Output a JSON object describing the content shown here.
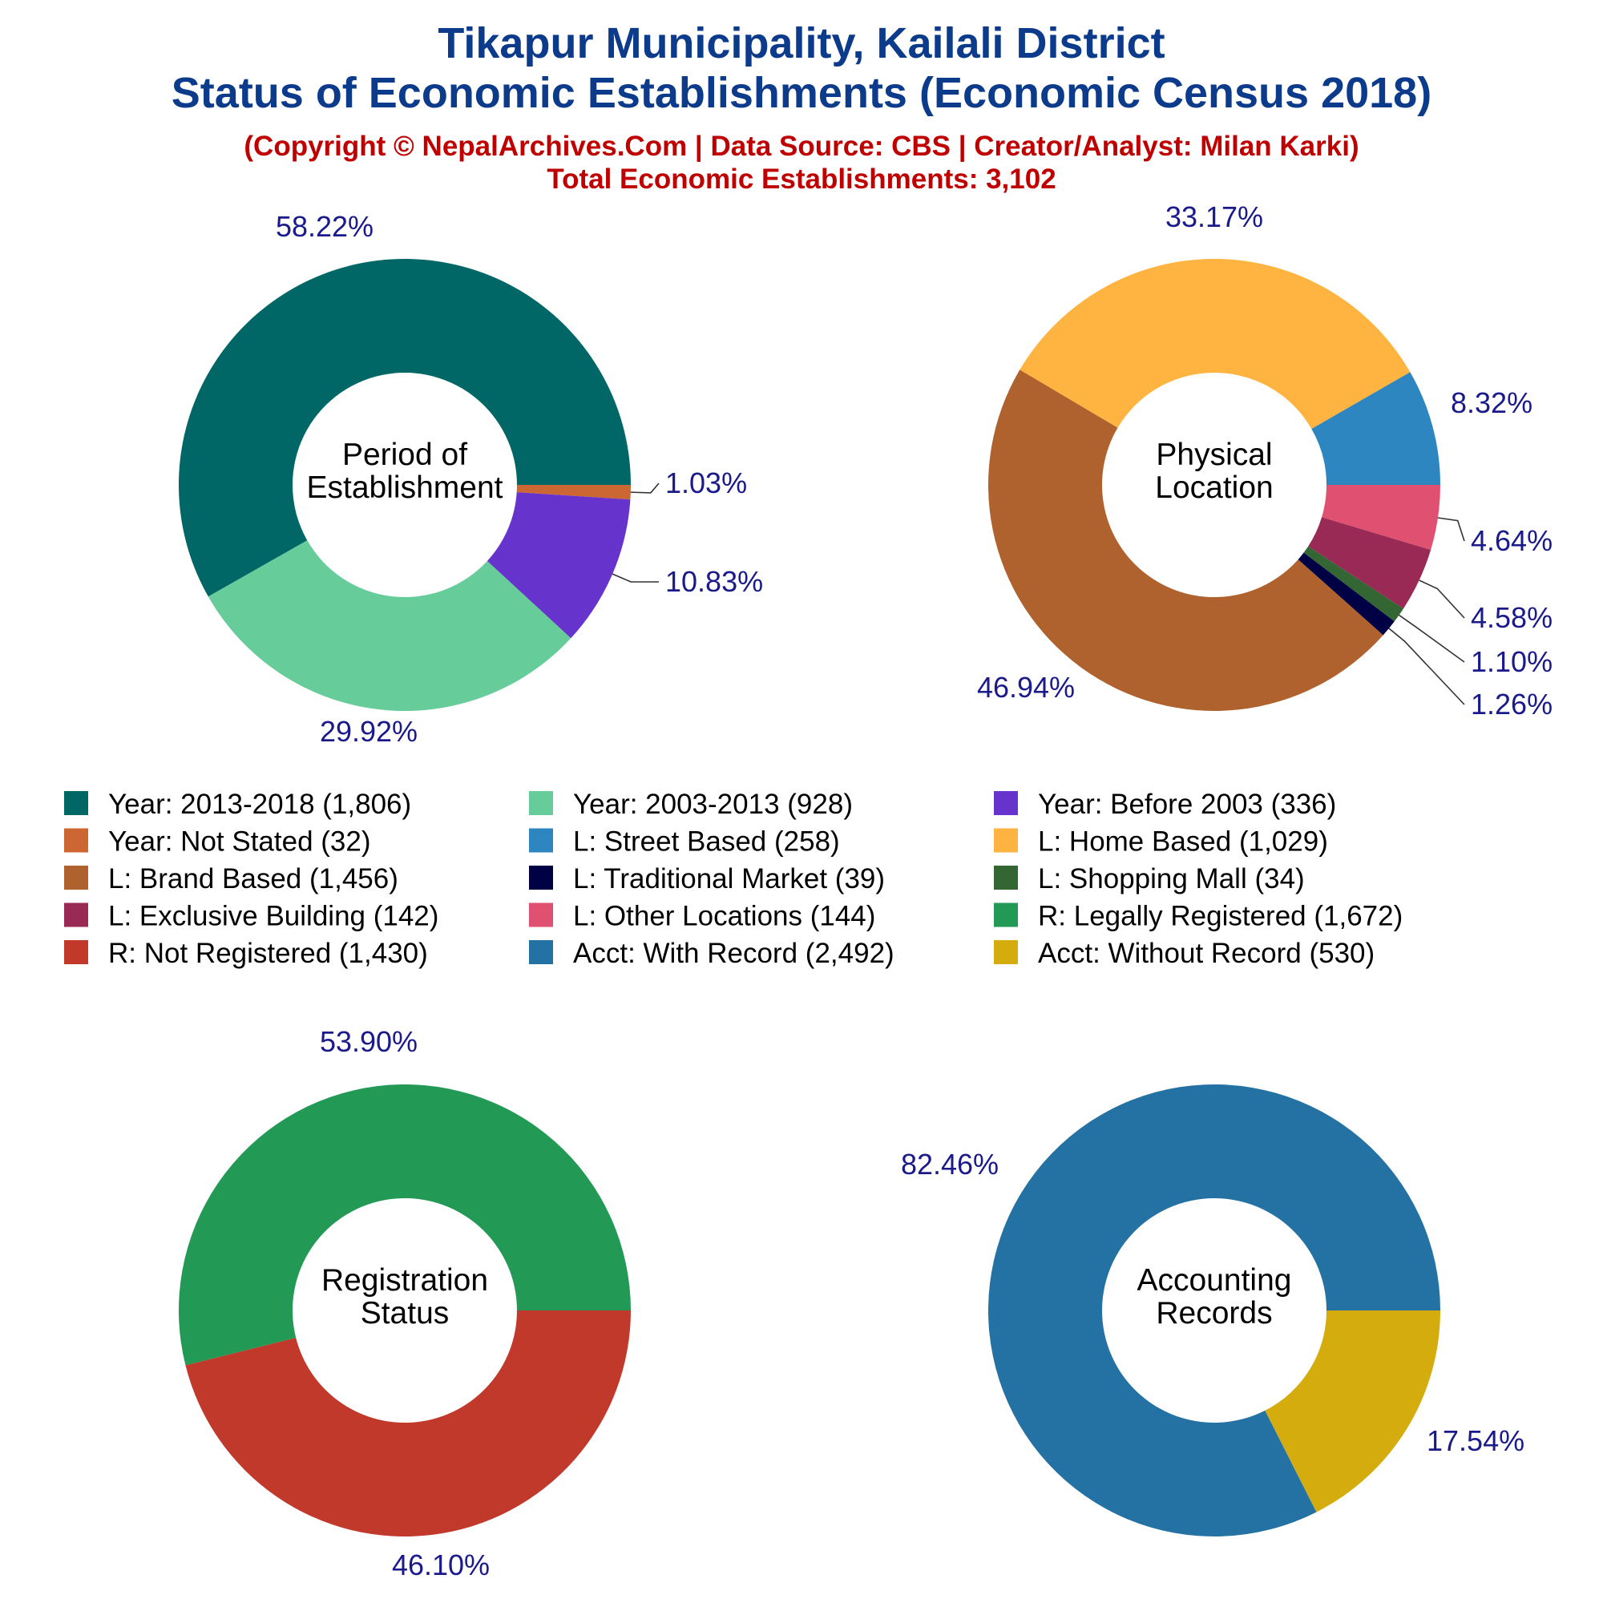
{
  "header": {
    "title_line1": "Tikapur Municipality, Kailali District",
    "title_line2": "Status of Economic Establishments (Economic Census 2018)",
    "credit_line": "(Copyright © NepalArchives.Com | Data Source: CBS | Creator/Analyst: Milan Karki)",
    "total_line": "Total Economic Establishments: 3,102"
  },
  "colors": {
    "title": "#0d3b8c",
    "credit": "#c00000",
    "percent_label": "#1a1a8a"
  },
  "legend": [
    {
      "label": "Year: 2013-2018 (1,806)",
      "color": "#006666"
    },
    {
      "label": "Year: 2003-2013 (928)",
      "color": "#66cc99"
    },
    {
      "label": "Year: Before 2003 (336)",
      "color": "#6633cc"
    },
    {
      "label": "Year: Not Stated (32)",
      "color": "#cc6633"
    },
    {
      "label": "L: Street Based (258)",
      "color": "#2e86c1"
    },
    {
      "label": "L: Home Based (1,029)",
      "color": "#ffb340"
    },
    {
      "label": "L: Brand Based (1,456)",
      "color": "#b0622e"
    },
    {
      "label": "L: Traditional Market (39)",
      "color": "#000044"
    },
    {
      "label": "L: Shopping Mall (34)",
      "color": "#336633"
    },
    {
      "label": "L: Exclusive Building (142)",
      "color": "#992955"
    },
    {
      "label": "L: Other Locations (144)",
      "color": "#e05070"
    },
    {
      "label": "R: Legally Registered (1,672)",
      "color": "#229955"
    },
    {
      "label": "R: Not Registered (1,430)",
      "color": "#c0392b"
    },
    {
      "label": "Acct: With Record (2,492)",
      "color": "#2471a3"
    },
    {
      "label": "Acct: Without Record (530)",
      "color": "#d4ac0d"
    }
  ],
  "chart_data": [
    {
      "type": "pie",
      "donut": true,
      "center_label": [
        "Period of",
        "Establishment"
      ],
      "slices": [
        {
          "label": "Year: Not Stated",
          "value": 32,
          "percent_label": "1.03%",
          "color": "#cc6633"
        },
        {
          "label": "Year: Before 2003",
          "value": 336,
          "percent_label": "10.83%",
          "color": "#6633cc"
        },
        {
          "label": "Year: 2003-2013",
          "value": 928,
          "percent_label": "29.92%",
          "color": "#66cc99"
        },
        {
          "label": "Year: 2013-2018",
          "value": 1806,
          "percent_label": "58.22%",
          "color": "#006666"
        }
      ]
    },
    {
      "type": "pie",
      "donut": true,
      "center_label": [
        "Physical",
        "Location"
      ],
      "slices": [
        {
          "label": "L: Other Locations",
          "value": 144,
          "percent_label": "4.64%",
          "color": "#e05070"
        },
        {
          "label": "L: Exclusive Building",
          "value": 142,
          "percent_label": "4.58%",
          "color": "#992955"
        },
        {
          "label": "L: Shopping Mall",
          "value": 34,
          "percent_label": "1.10%",
          "color": "#336633"
        },
        {
          "label": "L: Traditional Market",
          "value": 39,
          "percent_label": "1.26%",
          "color": "#000044"
        },
        {
          "label": "L: Brand Based",
          "value": 1456,
          "percent_label": "46.94%",
          "color": "#b0622e"
        },
        {
          "label": "L: Home Based",
          "value": 1029,
          "percent_label": "33.17%",
          "color": "#ffb340"
        },
        {
          "label": "L: Street Based",
          "value": 258,
          "percent_label": "8.32%",
          "color": "#2e86c1"
        }
      ]
    },
    {
      "type": "pie",
      "donut": true,
      "center_label": [
        "Registration",
        "Status"
      ],
      "slices": [
        {
          "label": "R: Not Registered",
          "value": 1430,
          "percent_label": "46.10%",
          "color": "#c0392b"
        },
        {
          "label": "R: Legally Registered",
          "value": 1672,
          "percent_label": "53.90%",
          "color": "#229955"
        }
      ]
    },
    {
      "type": "pie",
      "donut": true,
      "center_label": [
        "Accounting",
        "Records"
      ],
      "slices": [
        {
          "label": "Acct: Without Record",
          "value": 530,
          "percent_label": "17.54%",
          "color": "#d4ac0d"
        },
        {
          "label": "Acct: With Record",
          "value": 2492,
          "percent_label": "82.46%",
          "color": "#2471a3"
        }
      ]
    }
  ]
}
